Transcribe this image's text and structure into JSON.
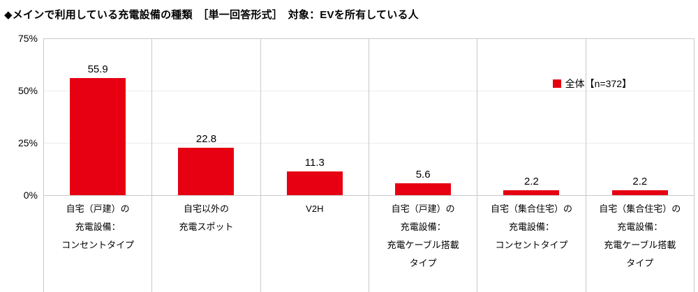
{
  "title": "◆メインで利用している充電設備の種類　［単一回答形式］　対象：EVを所有している人",
  "chart_data": {
    "type": "bar",
    "title": "メインで利用している充電設備の種類",
    "categories": [
      [
        "自宅（戸建）の",
        "充電設備：",
        "コンセントタイプ"
      ],
      [
        "自宅以外の",
        "充電スポット"
      ],
      [
        "V2H"
      ],
      [
        "自宅（戸建）の",
        "充電設備：",
        "充電ケーブル搭載",
        "タイプ"
      ],
      [
        "自宅（集合住宅）の",
        "充電設備：",
        "コンセントタイプ"
      ],
      [
        "自宅（集合住宅）の",
        "充電設備：",
        "充電ケーブル搭載",
        "タイプ"
      ]
    ],
    "values": [
      55.9,
      22.8,
      11.3,
      5.6,
      2.2,
      2.2
    ],
    "xlabel": "",
    "ylabel": "",
    "ylim": [
      0,
      75
    ],
    "yticks": [
      "0%",
      "25%",
      "50%",
      "75%"
    ],
    "grid": "faint horizontal at 25% steps, vertical category separators",
    "legend": "全体【n=372】",
    "legend_position": "upper right inside plot",
    "bar_color": "#e60012"
  }
}
